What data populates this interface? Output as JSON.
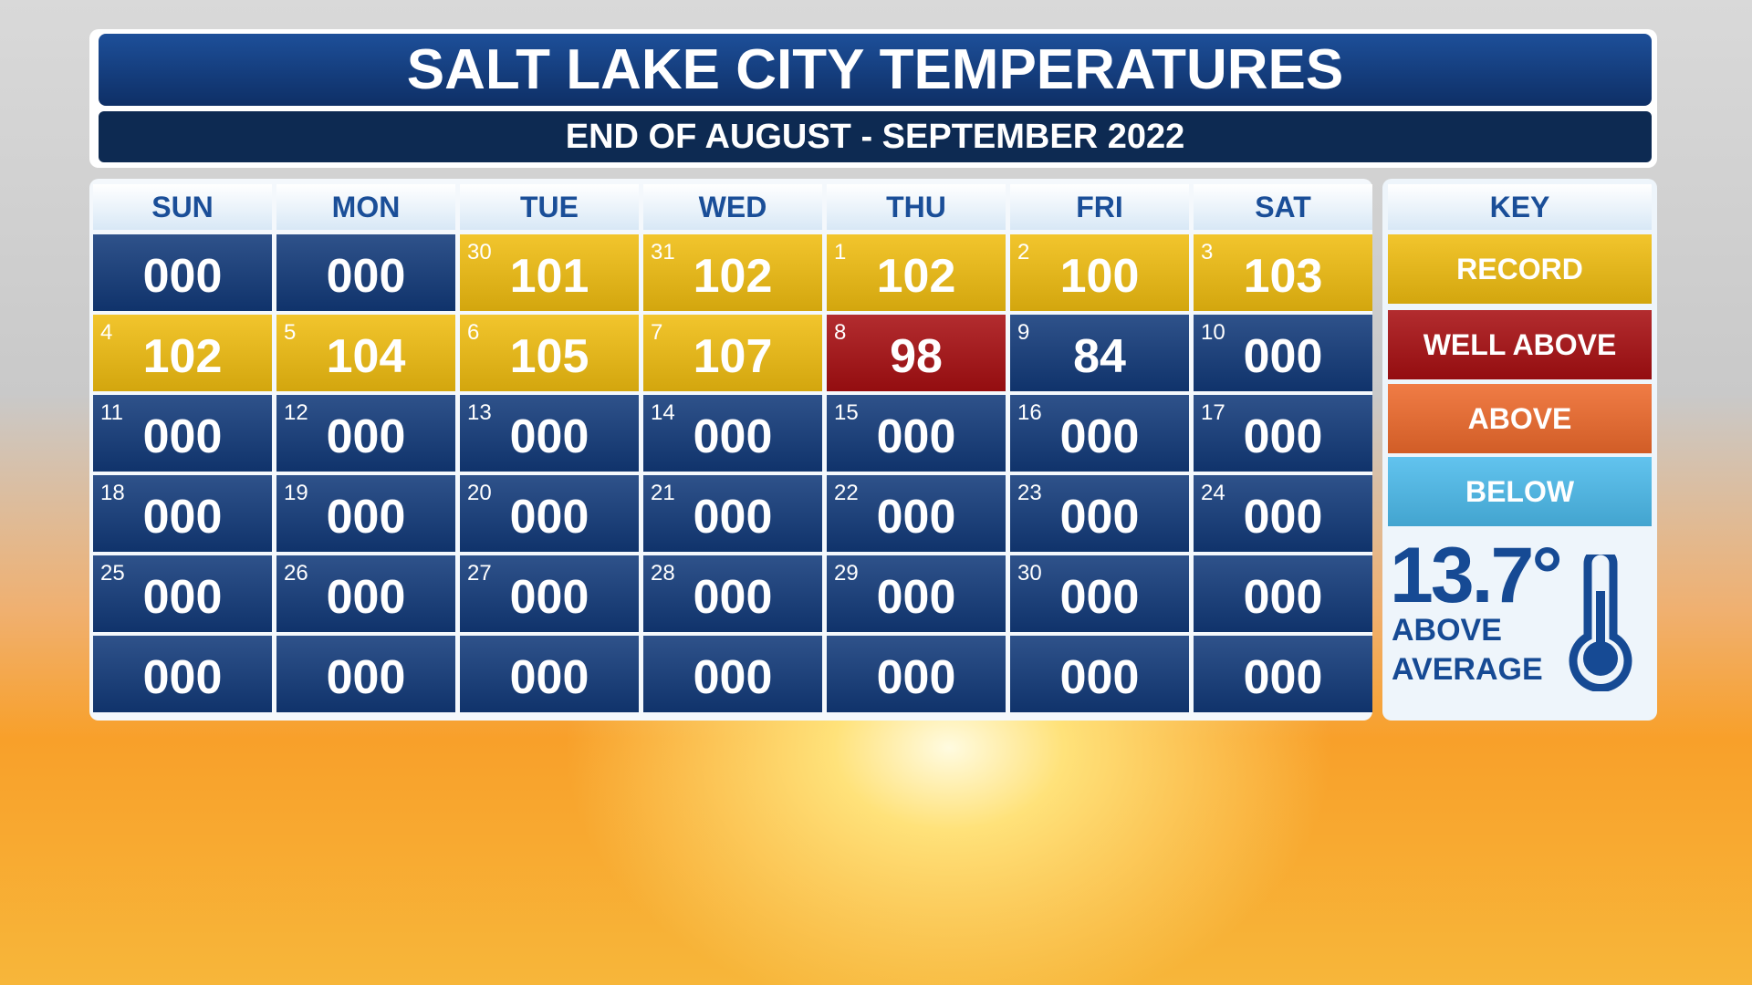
{
  "header": {
    "title": "SALT LAKE CITY TEMPERATURES",
    "subtitle": "END OF AUGUST - SEPTEMBER 2022"
  },
  "calendar": {
    "days": [
      "SUN",
      "MON",
      "TUE",
      "WED",
      "THU",
      "FRI",
      "SAT"
    ],
    "rows": [
      [
        {
          "value": "000",
          "color": "#123a7a"
        },
        {
          "value": "000",
          "color": "#123a7a"
        },
        {
          "day": 30,
          "value": 101,
          "color": "#f0bd10"
        },
        {
          "day": 31,
          "value": 102,
          "color": "#f0bd10"
        },
        {
          "day": 1,
          "value": 102,
          "color": "#f0bd10"
        },
        {
          "day": 2,
          "value": 100,
          "color": "#f0bd10"
        },
        {
          "day": 3,
          "value": 103,
          "color": "#f0bd10"
        }
      ],
      [
        {
          "day": 4,
          "value": 102,
          "color": "#f0bd10"
        },
        {
          "day": 5,
          "value": 104,
          "color": "#f0bd10"
        },
        {
          "day": 6,
          "value": 105,
          "color": "#f0bd10"
        },
        {
          "day": 7,
          "value": 107,
          "color": "#f0bd10"
        },
        {
          "day": 8,
          "value": 98,
          "color": "#a80f12"
        },
        {
          "day": 9,
          "value": 84,
          "color": "#123a7a"
        },
        {
          "day": 10,
          "value": "000",
          "color": "#123a7a"
        }
      ],
      [
        {
          "day": 11,
          "value": "000",
          "color": "#123a7a"
        },
        {
          "day": 12,
          "value": "000",
          "color": "#123a7a"
        },
        {
          "day": 13,
          "value": "000",
          "color": "#123a7a"
        },
        {
          "day": 14,
          "value": "000",
          "color": "#123a7a"
        },
        {
          "day": 15,
          "value": "000",
          "color": "#123a7a"
        },
        {
          "day": 16,
          "value": "000",
          "color": "#123a7a"
        },
        {
          "day": 17,
          "value": "000",
          "color": "#123a7a"
        }
      ],
      [
        {
          "day": 18,
          "value": "000",
          "color": "#123a7a"
        },
        {
          "day": 19,
          "value": "000",
          "color": "#123a7a"
        },
        {
          "day": 20,
          "value": "000",
          "color": "#123a7a"
        },
        {
          "day": 21,
          "value": "000",
          "color": "#123a7a"
        },
        {
          "day": 22,
          "value": "000",
          "color": "#123a7a"
        },
        {
          "day": 23,
          "value": "000",
          "color": "#123a7a"
        },
        {
          "day": 24,
          "value": "000",
          "color": "#123a7a"
        }
      ],
      [
        {
          "day": 25,
          "value": "000",
          "color": "#123a7a"
        },
        {
          "day": 26,
          "value": "000",
          "color": "#123a7a"
        },
        {
          "day": 27,
          "value": "000",
          "color": "#123a7a"
        },
        {
          "day": 28,
          "value": "000",
          "color": "#123a7a"
        },
        {
          "day": 29,
          "value": "000",
          "color": "#123a7a"
        },
        {
          "day": 30,
          "value": "000",
          "color": "#123a7a"
        },
        {
          "value": "000",
          "color": "#123a7a"
        }
      ],
      [
        {
          "value": "000",
          "color": "#123a7a"
        },
        {
          "value": "000",
          "color": "#123a7a"
        },
        {
          "value": "000",
          "color": "#123a7a"
        },
        {
          "value": "000",
          "color": "#123a7a"
        },
        {
          "value": "000",
          "color": "#123a7a"
        },
        {
          "value": "000",
          "color": "#123a7a"
        },
        {
          "value": "000",
          "color": "#123a7a"
        }
      ]
    ]
  },
  "key": {
    "title": "KEY",
    "items": [
      {
        "label": "RECORD",
        "color": "#f0bd10"
      },
      {
        "label": "WELL ABOVE",
        "color": "#a80f12"
      },
      {
        "label": "ABOVE",
        "color": "#ee6a2c"
      },
      {
        "label": "BELOW",
        "color": "#4cbbec"
      }
    ],
    "stat": "13.7°",
    "stat_lines": [
      "ABOVE",
      "AVERAGE"
    ]
  }
}
